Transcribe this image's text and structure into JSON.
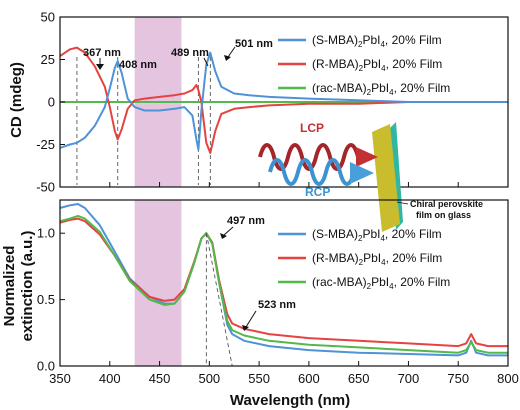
{
  "chart_data": [
    {
      "type": "line",
      "title": "",
      "xlabel": "Wavelength (nm)",
      "ylabel": "CD (mdeg)",
      "xlim": [
        350,
        800
      ],
      "ylim": [
        -50,
        50
      ],
      "x_ticks": [],
      "y_ticks": [
        "50",
        "25",
        "0",
        "-25",
        "-50"
      ],
      "y_tick_values": [
        50,
        25,
        0,
        -25,
        -50
      ],
      "grid": false,
      "legend_position": "top-right",
      "highlight_band": {
        "from": 425,
        "to": 472,
        "color": "#e4c4df"
      },
      "series": [
        {
          "name_parts": [
            "(S-MBA)",
            "2",
            "PbI",
            "4",
            ", 20% Film"
          ],
          "color": "#4f93d6",
          "x": [
            350,
            360,
            367,
            375,
            385,
            395,
            400,
            405,
            408,
            412,
            418,
            425,
            435,
            450,
            465,
            475,
            483,
            487,
            489,
            492,
            497,
            501,
            506,
            512,
            525,
            540,
            560,
            600,
            650,
            700,
            750,
            800
          ],
          "y": [
            -27,
            -25,
            -24,
            -21,
            -14,
            -3,
            8,
            20,
            24,
            17,
            2,
            -3,
            -5,
            -5,
            -4,
            -3,
            -8,
            -22,
            -28,
            -5,
            22,
            29,
            18,
            9,
            5,
            4,
            3,
            2,
            1,
            0,
            0,
            0
          ]
        },
        {
          "name_parts": [
            "(R-MBA)",
            "2",
            "PbI",
            "4",
            ", 20% Film"
          ],
          "color": "#e5433f",
          "x": [
            350,
            360,
            367,
            375,
            385,
            395,
            400,
            405,
            408,
            412,
            418,
            425,
            435,
            450,
            465,
            475,
            483,
            487,
            489,
            492,
            497,
            501,
            506,
            512,
            525,
            540,
            560,
            600,
            650,
            700,
            750,
            800
          ],
          "y": [
            27,
            31,
            32,
            29,
            21,
            9,
            -3,
            -17,
            -22,
            -16,
            -4,
            1,
            2,
            3,
            4,
            5,
            7,
            10,
            7,
            0,
            -24,
            -30,
            -17,
            -7,
            -4,
            -3,
            -2,
            -1,
            -1,
            0,
            0,
            0
          ]
        },
        {
          "name_parts": [
            "(rac-MBA)",
            "2",
            "PbI",
            "4",
            ", 20% Film"
          ],
          "color": "#52b94a",
          "x": [
            350,
            400,
            450,
            489,
            501,
            550,
            600,
            650,
            700,
            750,
            800
          ],
          "y": [
            0,
            0,
            0,
            0,
            0,
            0,
            0,
            0,
            0,
            0,
            0
          ]
        }
      ],
      "annotations": [
        {
          "text": "367 nm",
          "x": 367
        },
        {
          "text": "408 nm",
          "x": 408
        },
        {
          "text": "489 nm",
          "x": 489
        },
        {
          "text": "501 nm",
          "x": 501
        }
      ],
      "inset": {
        "lcp": "LCP",
        "rcp": "RCP",
        "film_line1": "Chiral perovskite",
        "film_line2": "film on glass"
      }
    },
    {
      "type": "line",
      "title": "",
      "xlabel": "Wavelength (nm)",
      "ylabel_line1": "Normalized",
      "ylabel_line2": "extinction (a.u.)",
      "xlim": [
        350,
        800
      ],
      "ylim": [
        0,
        1.25
      ],
      "x_ticks": [
        "350",
        "400",
        "450",
        "500",
        "550",
        "600",
        "650",
        "700",
        "750",
        "800"
      ],
      "x_tick_values": [
        350,
        400,
        450,
        500,
        550,
        600,
        650,
        700,
        750,
        800
      ],
      "y_ticks": [
        "0.0",
        "0.5",
        "1.0"
      ],
      "y_tick_values": [
        0,
        0.5,
        1.0
      ],
      "grid": false,
      "legend_position": "top-right",
      "highlight_band": {
        "from": 425,
        "to": 472,
        "color": "#e4c4df"
      },
      "series": [
        {
          "name_parts": [
            "(S-MBA)",
            "2",
            "PbI",
            "4",
            ", 20% Film"
          ],
          "color": "#4f93d6",
          "x": [
            350,
            360,
            368,
            375,
            390,
            405,
            420,
            440,
            455,
            465,
            475,
            485,
            492,
            497,
            503,
            510,
            518,
            523,
            535,
            560,
            600,
            650,
            700,
            750,
            758,
            763,
            768,
            780,
            800
          ],
          "y": [
            1.19,
            1.21,
            1.22,
            1.19,
            1.06,
            0.86,
            0.66,
            0.52,
            0.47,
            0.47,
            0.56,
            0.78,
            0.96,
            1.0,
            0.92,
            0.62,
            0.31,
            0.24,
            0.19,
            0.15,
            0.12,
            0.1,
            0.09,
            0.08,
            0.1,
            0.19,
            0.1,
            0.08,
            0.08
          ]
        },
        {
          "name_parts": [
            "(R-MBA)",
            "2",
            "PbI",
            "4",
            ", 20% Film"
          ],
          "color": "#e5433f",
          "x": [
            350,
            360,
            368,
            375,
            390,
            405,
            420,
            440,
            455,
            465,
            475,
            485,
            492,
            497,
            503,
            510,
            518,
            523,
            535,
            560,
            600,
            650,
            700,
            750,
            758,
            763,
            768,
            780,
            800
          ],
          "y": [
            1.08,
            1.1,
            1.11,
            1.09,
            0.99,
            0.83,
            0.65,
            0.52,
            0.49,
            0.5,
            0.58,
            0.79,
            0.96,
            1.0,
            0.93,
            0.64,
            0.39,
            0.32,
            0.28,
            0.24,
            0.21,
            0.19,
            0.17,
            0.15,
            0.17,
            0.24,
            0.17,
            0.15,
            0.15
          ]
        },
        {
          "name_parts": [
            "(rac-MBA)",
            "2",
            "PbI",
            "4",
            ", 20% Film"
          ],
          "color": "#52b94a",
          "x": [
            350,
            360,
            368,
            375,
            390,
            405,
            420,
            440,
            455,
            465,
            475,
            485,
            492,
            497,
            503,
            510,
            518,
            523,
            535,
            560,
            600,
            650,
            700,
            750,
            758,
            763,
            768,
            780,
            800
          ],
          "y": [
            1.09,
            1.11,
            1.13,
            1.11,
            1.01,
            0.83,
            0.64,
            0.5,
            0.46,
            0.47,
            0.56,
            0.78,
            0.96,
            1.0,
            0.92,
            0.62,
            0.34,
            0.27,
            0.23,
            0.19,
            0.16,
            0.14,
            0.12,
            0.1,
            0.12,
            0.18,
            0.12,
            0.1,
            0.1
          ]
        }
      ],
      "annotations": [
        {
          "text": "497 nm",
          "x": 497
        },
        {
          "text": "523 nm",
          "x": 523
        }
      ]
    }
  ]
}
